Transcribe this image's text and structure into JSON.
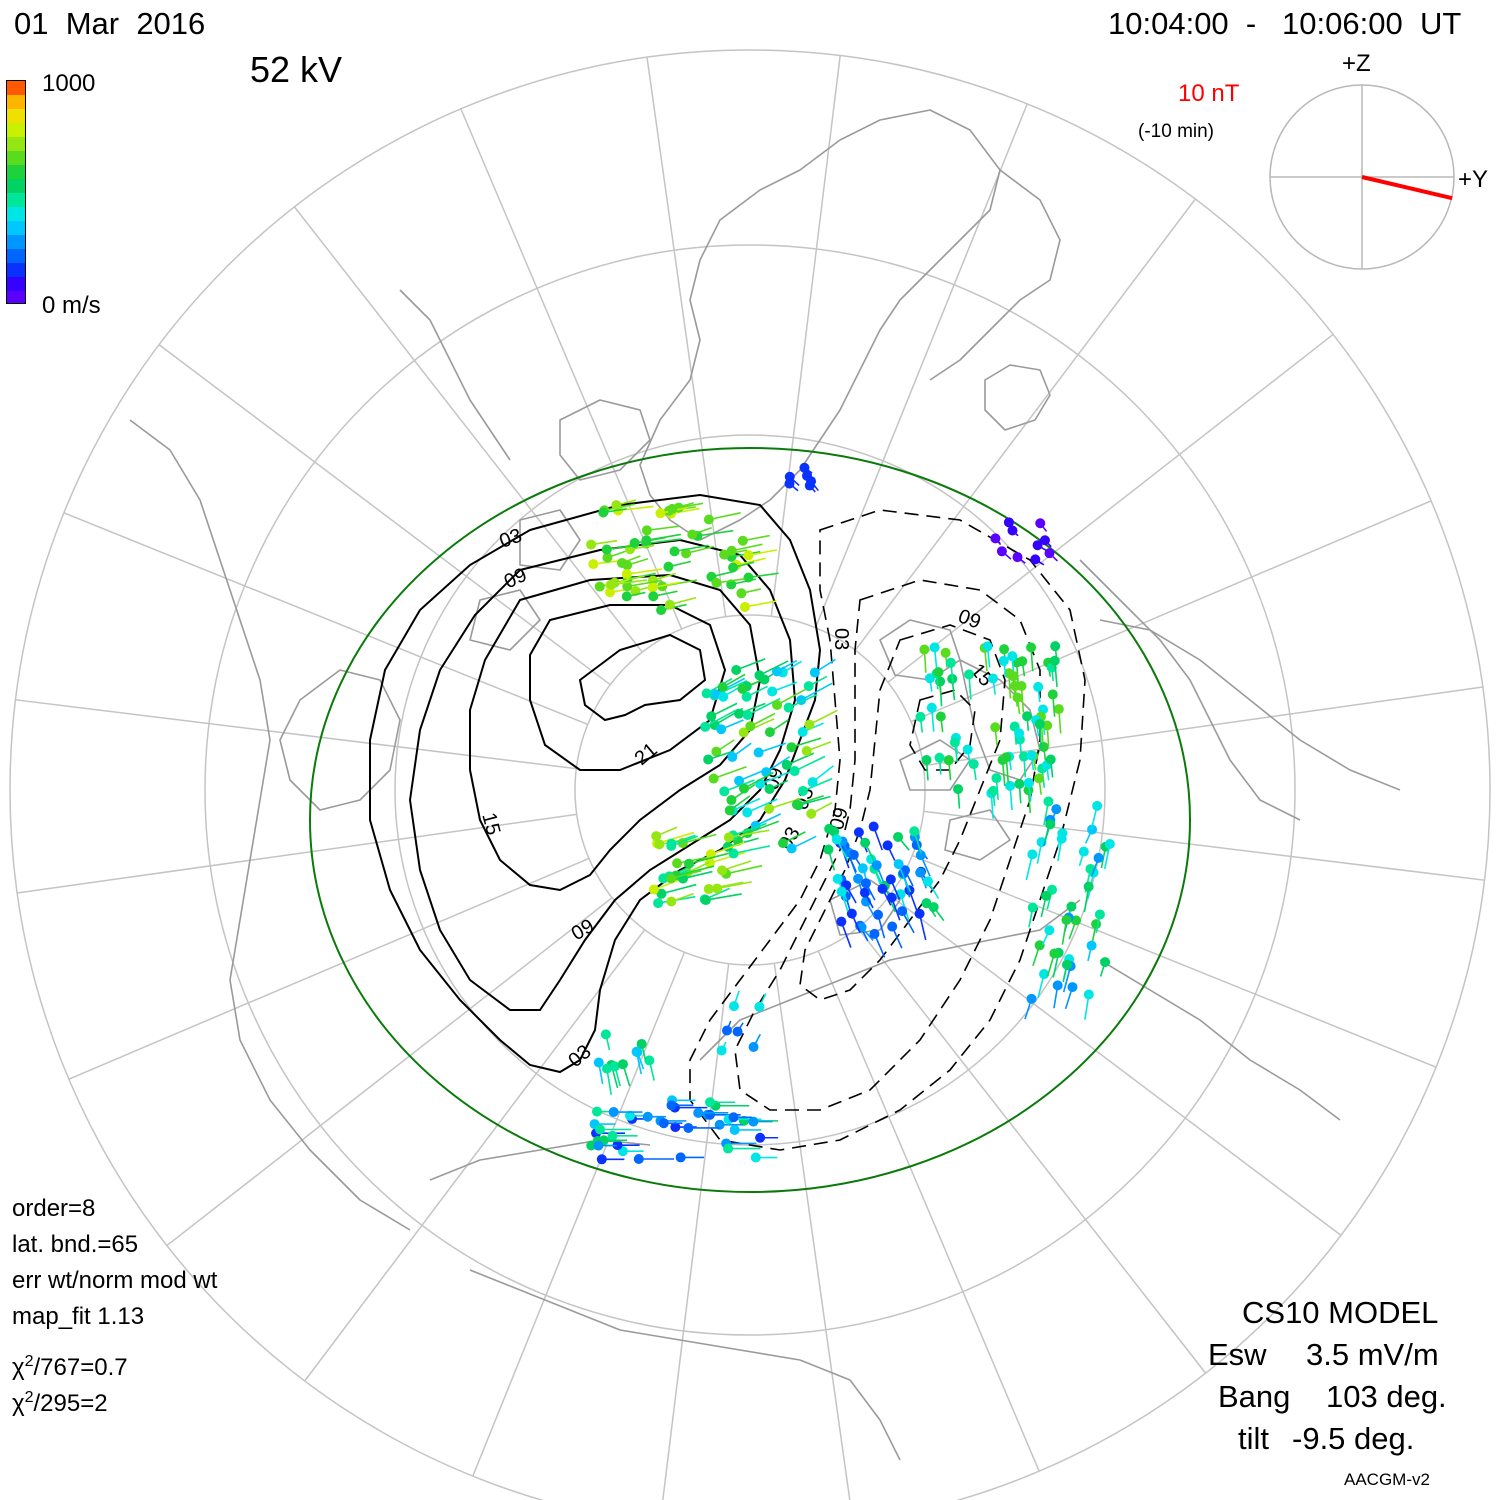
{
  "header": {
    "date": "01  Mar  2016",
    "time_range": "10:04:00  -   10:06:00  UT",
    "potential": "52 kV"
  },
  "colorbar": {
    "max_label": "1000",
    "min_label": "0 m/s",
    "colors": [
      "#5b00ff",
      "#3400ff",
      "#0a32ff",
      "#0066ff",
      "#0096ff",
      "#00c8ff",
      "#00e6e6",
      "#00e69a",
      "#00d264",
      "#1ed23c",
      "#5adc1e",
      "#96e614",
      "#c8f000",
      "#f0e000",
      "#ffb400",
      "#ff5a00"
    ]
  },
  "imf": {
    "scale_label": "10 nT",
    "delay_label": "(-10 min)",
    "z_label": "+Z",
    "y_label": "+Y",
    "vector_color": "#ff0000",
    "by_fraction": 0.98,
    "bz_fraction": -0.23
  },
  "fit": {
    "order": "order=8",
    "lat_bnd": "lat. bnd.=65",
    "weight": "err wt/norm mod wt",
    "map_fit": "map_fit 1.13",
    "chi1_prefix": "χ",
    "chi1_sup": "2",
    "chi1_rest": "/767=0.7",
    "chi2_prefix": "χ",
    "chi2_sup": "2",
    "chi2_rest": "/295=2"
  },
  "model": {
    "name": "CS10 MODEL",
    "esw_label": "Esw",
    "esw_value": "3.5 mV/m",
    "bang_label": "Bang",
    "bang_value": "103 deg.",
    "tilt_label": "tilt",
    "tilt_value": "-9.5 deg."
  },
  "coords": "AACGM-v2",
  "contours": {
    "labels": [
      "03",
      "09",
      "15",
      "21",
      "09",
      "03",
      "03",
      "09",
      "03",
      "09",
      "15",
      "03",
      "09",
      "03"
    ],
    "positive_color": "#000000",
    "boundary_color": "#0a7a0a",
    "grid_color": "#c0c0c0",
    "coast_color": "#9a9a9a"
  }
}
